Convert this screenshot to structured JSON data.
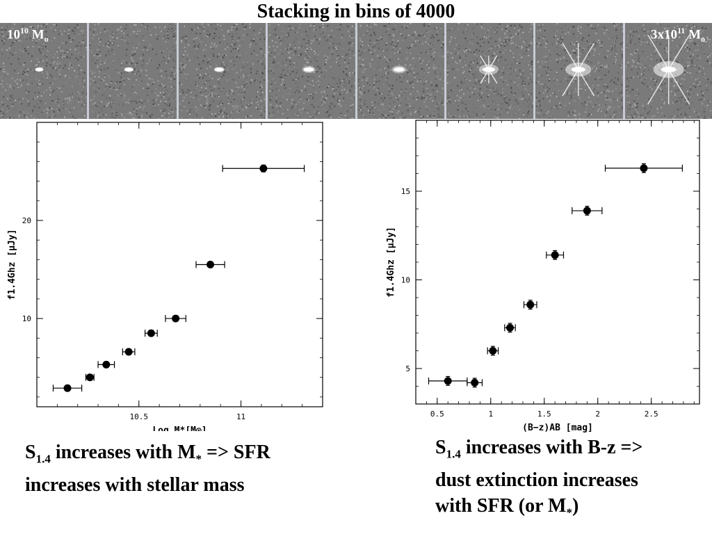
{
  "title": "Stacking in bins of 4000",
  "stamps": {
    "count": 8,
    "left_label": {
      "base": "10",
      "exp": "10",
      "unit": "M",
      "unit_sub": "o"
    },
    "right_label": {
      "base": "3x10",
      "exp": "11",
      "unit": "M",
      "unit_sub": "o"
    },
    "source_strength": [
      0.35,
      0.4,
      0.45,
      0.55,
      0.6,
      0.75,
      0.9,
      1.0
    ],
    "colors": {
      "background": "#7a7a7a",
      "separator": "#c8ccd6",
      "source": "#ffffff"
    }
  },
  "captions": {
    "left": {
      "line1_pre": "S",
      "line1_sub": "1.4",
      "line1_post": " increases with M",
      "line1_star": "*",
      "line1_end": " => SFR",
      "line2": "increases with stellar mass"
    },
    "right": {
      "line1_pre": "S",
      "line1_sub": "1.4",
      "line1_post": " increases with B-z =>",
      "line2": "dust extinction increases",
      "line3_pre": "with SFR (or M",
      "line3_star": "*",
      "line3_end": ")"
    }
  },
  "chart_data": [
    {
      "type": "scatter",
      "title": "",
      "xlabel": "Log M*[M⊙]",
      "ylabel": "f1.4Ghz [μJy]",
      "xlim": [
        10.0,
        11.4
      ],
      "ylim": [
        1.0,
        30.0
      ],
      "x_ticks": [
        10.5,
        11
      ],
      "x_tick_labels": [
        "10.5",
        "11"
      ],
      "y_ticks": [
        10,
        20
      ],
      "y_tick_labels": [
        "10",
        "20"
      ],
      "grid": false,
      "points": [
        {
          "x": 10.15,
          "y": 2.9,
          "xerr": 0.07,
          "yerr": 0.3
        },
        {
          "x": 10.26,
          "y": 4.0,
          "xerr": 0.02,
          "yerr": 0.3
        },
        {
          "x": 10.34,
          "y": 5.3,
          "xerr": 0.04,
          "yerr": 0.3
        },
        {
          "x": 10.45,
          "y": 6.6,
          "xerr": 0.03,
          "yerr": 0.3
        },
        {
          "x": 10.56,
          "y": 8.5,
          "xerr": 0.03,
          "yerr": 0.3
        },
        {
          "x": 10.68,
          "y": 10.0,
          "xerr": 0.05,
          "yerr": 0.3
        },
        {
          "x": 10.85,
          "y": 15.5,
          "xerr": 0.07,
          "yerr": 0.3
        },
        {
          "x": 11.11,
          "y": 25.3,
          "xerr": 0.2,
          "yerr": 0.35
        }
      ]
    },
    {
      "type": "scatter",
      "title": "",
      "xlabel": "(B−z)AB [mag]",
      "ylabel": "f1.4Ghz [μJy]",
      "xlim": [
        0.3,
        2.95
      ],
      "ylim": [
        3.0,
        19.0
      ],
      "x_ticks": [
        0.5,
        1,
        1.5,
        2,
        2.5
      ],
      "x_tick_labels": [
        "0.5",
        "1",
        "1.5",
        "2",
        "2.5"
      ],
      "y_ticks": [
        5,
        10,
        15
      ],
      "y_tick_labels": [
        "5",
        "10",
        "15"
      ],
      "grid": false,
      "points": [
        {
          "x": 0.6,
          "y": 4.3,
          "xerr": 0.18,
          "yerr": 0.25
        },
        {
          "x": 0.85,
          "y": 4.2,
          "xerr": 0.07,
          "yerr": 0.25
        },
        {
          "x": 1.02,
          "y": 6.0,
          "xerr": 0.05,
          "yerr": 0.25
        },
        {
          "x": 1.18,
          "y": 7.3,
          "xerr": 0.05,
          "yerr": 0.25
        },
        {
          "x": 1.37,
          "y": 8.6,
          "xerr": 0.06,
          "yerr": 0.25
        },
        {
          "x": 1.6,
          "y": 11.4,
          "xerr": 0.08,
          "yerr": 0.25
        },
        {
          "x": 1.9,
          "y": 13.9,
          "xerr": 0.14,
          "yerr": 0.25
        },
        {
          "x": 2.43,
          "y": 16.3,
          "xerr": 0.36,
          "yerr": 0.25
        }
      ]
    }
  ]
}
